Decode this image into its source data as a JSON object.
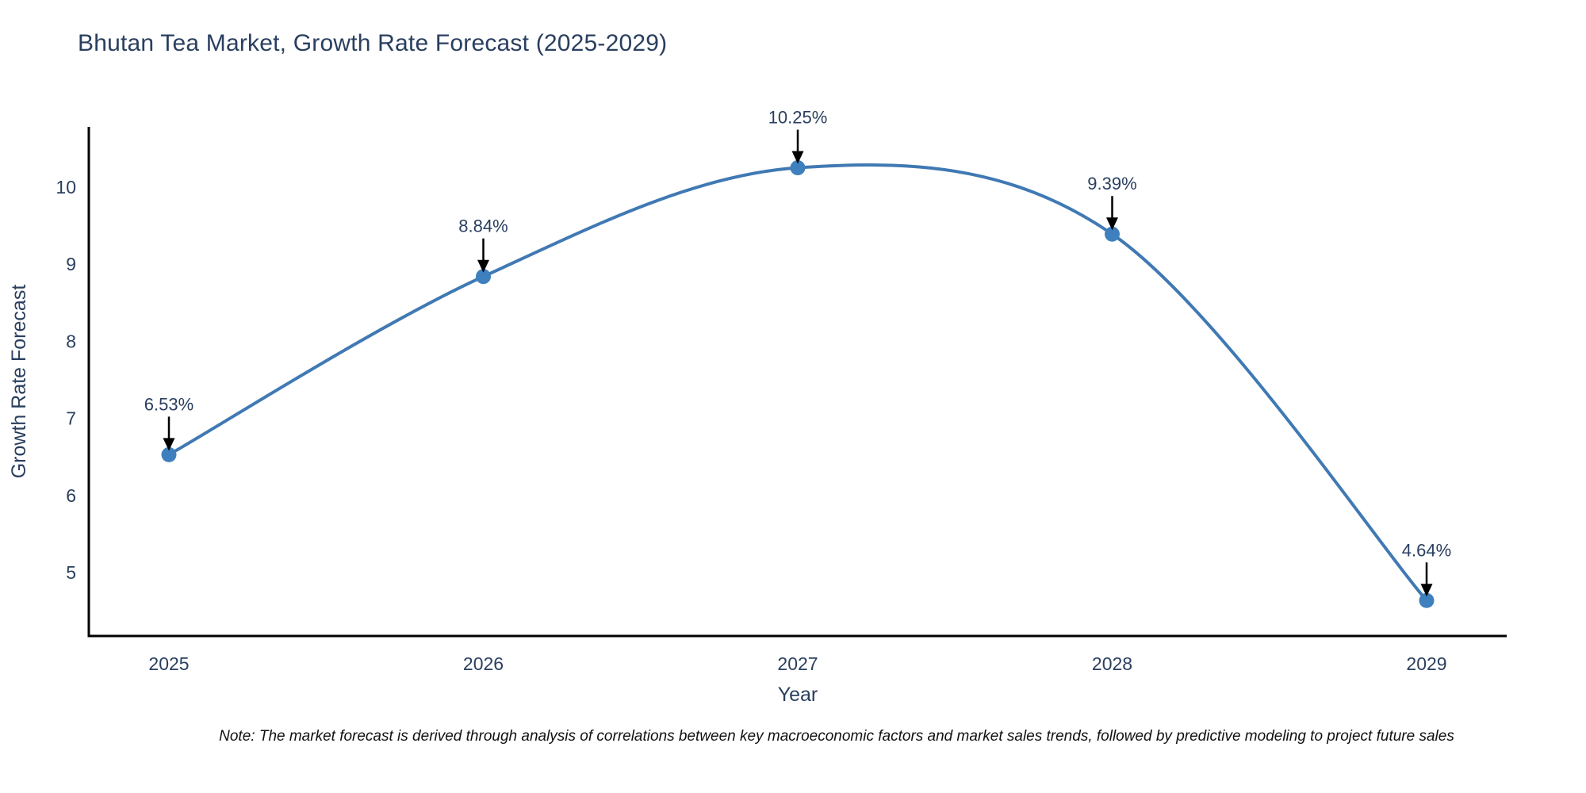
{
  "header": {
    "title": "Bhutan Tea Market, Growth Rate Forecast (2025-2029)"
  },
  "footer": {
    "note": "Note: The market forecast is derived through analysis of correlations between key macroeconomic factors and market sales trends, followed by predictive modeling to project future sales"
  },
  "chart_data": {
    "type": "line",
    "title": "Bhutan Tea Market, Growth Rate Forecast (2025-2029)",
    "xlabel": "Year",
    "ylabel": "Growth Rate Forecast",
    "categories": [
      "2025",
      "2026",
      "2027",
      "2028",
      "2029"
    ],
    "x": [
      2025,
      2026,
      2027,
      2028,
      2029
    ],
    "series": [
      {
        "name": "Growth Rate Forecast",
        "values": [
          6.53,
          8.84,
          10.25,
          9.39,
          4.64
        ],
        "point_labels": [
          "6.53%",
          "8.84%",
          "10.25%",
          "9.39%",
          "4.64%"
        ]
      }
    ],
    "line_shape": "spline",
    "markers": true,
    "annotation_arrows": true,
    "grid": false,
    "legend": "none",
    "ylim": [
      4.18,
      10.78
    ],
    "yticks": [
      5,
      6,
      7,
      8,
      9,
      10
    ],
    "colors": {
      "line": "#4079b3",
      "marker": "#3e80be",
      "axis": "#000000",
      "text": "#2a3f5f",
      "arrow": "#000000",
      "background": "#ffffff"
    }
  }
}
